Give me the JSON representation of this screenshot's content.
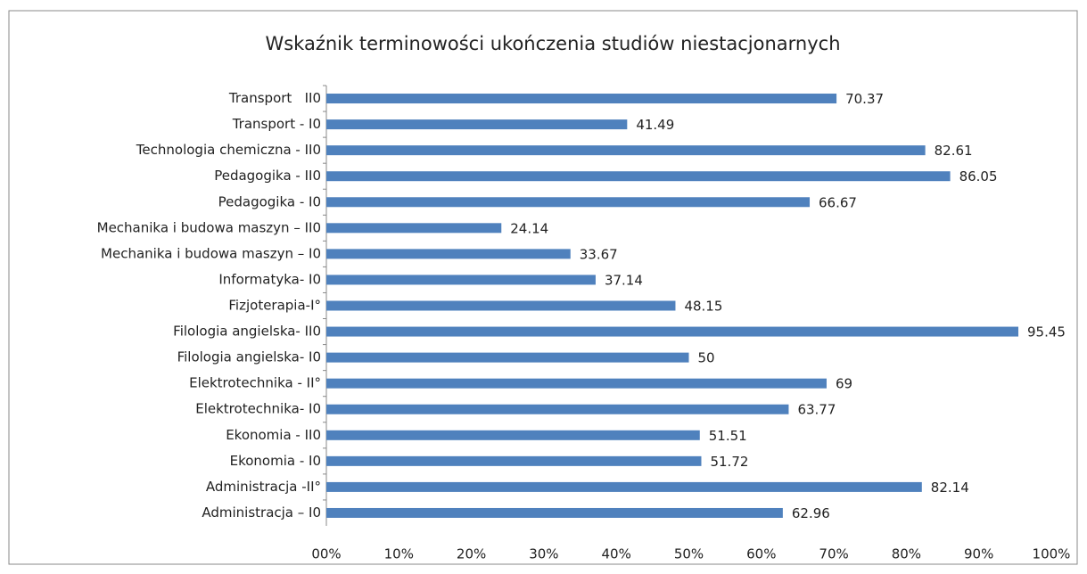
{
  "chart_data": {
    "type": "bar",
    "orientation": "horizontal",
    "title": "Wskaźnik terminowości ukończenia studiów niestacjonarnych",
    "categories": [
      "Transport   II0",
      "Transport - I0",
      "Technologia chemiczna - II0",
      "Pedagogika - II0",
      "Pedagogika - I0",
      "Mechanika i budowa maszyn – II0",
      "Mechanika i budowa maszyn – I0",
      "Informatyka- I0",
      "Fizjoterapia-I°",
      "Filologia angielska- II0",
      "Filologia angielska- I0",
      "Elektrotechnika - II°",
      "Elektrotechnika- I0",
      "Ekonomia - II0",
      "Ekonomia - I0",
      "Administracja -II°",
      "Administracja – I0"
    ],
    "values": [
      70.37,
      41.49,
      82.61,
      86.05,
      66.67,
      24.14,
      33.67,
      37.14,
      48.15,
      95.45,
      50,
      69,
      63.77,
      51.51,
      51.72,
      82.14,
      62.96
    ],
    "color": "#4f81bd",
    "xlim": [
      0,
      100
    ],
    "xticks": [
      {
        "value": 0,
        "label": "00%"
      },
      {
        "value": 10,
        "label": "10%"
      },
      {
        "value": 20,
        "label": "20%"
      },
      {
        "value": 30,
        "label": "30%"
      },
      {
        "value": 40,
        "label": "40%"
      },
      {
        "value": 50,
        "label": "50%"
      },
      {
        "value": 60,
        "label": "60%"
      },
      {
        "value": 70,
        "label": "70%"
      },
      {
        "value": 80,
        "label": "80%"
      },
      {
        "value": 90,
        "label": "90%"
      },
      {
        "value": 100,
        "label": "100%"
      }
    ],
    "grid": false
  }
}
